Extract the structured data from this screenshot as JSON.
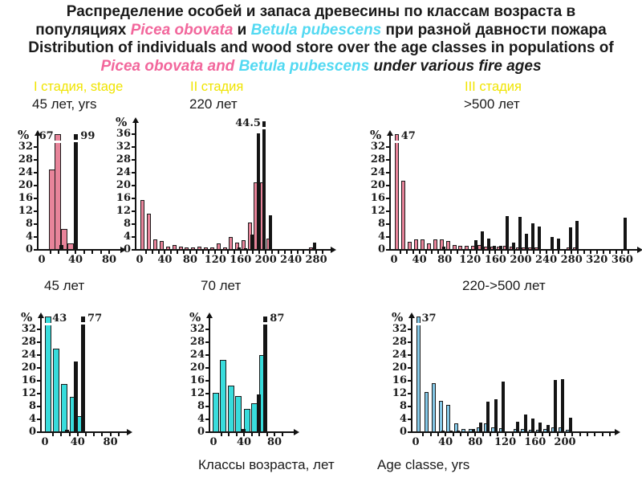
{
  "title": {
    "line1_ru": "Распределение особей и запаса древесины по классам возраста в",
    "line2_prefix": "популяциях ",
    "picea_ru": "Picea obovata",
    "line2_mid": " и ",
    "betula_ru": "Betula pubescens",
    "line2_suffix": " при разной давности пожара",
    "line3_en": "Distribution of individuals and wood store over the age classes in populations of",
    "line4_picea": "Picea obovata and ",
    "line4_betula": "Betula pubescens",
    "line4_suffix": " under various fire ages"
  },
  "stages": [
    {
      "stage_label": "I стадия, stage",
      "age_label": "45 лет, yrs"
    },
    {
      "stage_label": "II стадия",
      "age_label": "220 лет"
    },
    {
      "stage_label": "III стадия",
      "age_label": ">500 лет"
    }
  ],
  "bottom_labels": [
    "45 лет",
    "70 лет",
    "220->500 лет"
  ],
  "caption": {
    "ru": "Классы возраста, лет",
    "en": "Age classe, yrs"
  },
  "colors": {
    "picea_pink": "#f2679c",
    "betula_cyan": "#52d9f2",
    "stage_yellow": "#f0e400",
    "pink_bar": "#e8849a",
    "turquoise_bar": "#38dcdc",
    "blue_bar": "#85c9e8",
    "black_bar": "#141414"
  },
  "chart_data": [
    {
      "id": "c1",
      "type": "bar",
      "ylabel": "%",
      "ymax": 32,
      "ytick_step": 4,
      "xticks": [
        0,
        40,
        80
      ],
      "xlim": [
        0,
        90
      ],
      "series": [
        {
          "name": "individuals % (Picea obovata)",
          "color_key": "pink_bar",
          "points": [
            [
              12,
              25
            ],
            [
              19,
              67,
              1
            ],
            [
              27,
              6.5
            ],
            [
              34,
              2
            ]
          ]
        },
        {
          "name": "wood store %",
          "color_key": "black_bar",
          "points": [
            [
              23.5,
              1.5
            ],
            [
              40,
              99,
              1
            ]
          ]
        }
      ],
      "annotations": [
        {
          "text": "67",
          "x": 14,
          "align": "right"
        },
        {
          "text": "99",
          "x": 46,
          "align": "left"
        }
      ]
    },
    {
      "id": "c2",
      "type": "bar",
      "ylabel": "%",
      "ymax": 36,
      "ytick_step": 4,
      "xticks": [
        0,
        40,
        80,
        120,
        160,
        200,
        240,
        280
      ],
      "xlim": [
        0,
        300
      ],
      "series": [
        {
          "name": "individuals % (Picea obovata)",
          "color_key": "pink_bar",
          "points": [
            [
              5,
              15.5
            ],
            [
              15,
              11.3
            ],
            [
              25,
              3.3
            ],
            [
              35,
              2.7
            ],
            [
              45,
              0.9
            ],
            [
              55,
              1.5
            ],
            [
              65,
              0.9
            ],
            [
              75,
              0.2
            ],
            [
              85,
              0.8
            ],
            [
              95,
              0.9
            ],
            [
              105,
              0.8
            ],
            [
              115,
              0.3
            ],
            [
              125,
              1.9
            ],
            [
              135,
              0.8
            ],
            [
              145,
              3.9
            ],
            [
              155,
              2.3
            ],
            [
              165,
              2.9
            ],
            [
              175,
              8.5
            ],
            [
              184,
              21
            ],
            [
              194,
              21
            ],
            [
              204,
              3.4
            ],
            [
              272,
              0.8
            ]
          ]
        },
        {
          "name": "wood store %",
          "color_key": "black_bar",
          "points": [
            [
              158,
              0.7
            ],
            [
              168,
              0.6
            ],
            [
              178,
              4.7
            ],
            [
              188,
              36.2
            ],
            [
              197,
              44.5,
              1
            ],
            [
              207,
              10.7
            ],
            [
              277,
              2.3
            ]
          ]
        }
      ],
      "annotations": [
        {
          "text": "44.5",
          "x": 192,
          "align": "right"
        }
      ]
    },
    {
      "id": "c3",
      "type": "bar",
      "ylabel": "%",
      "ymax": 32,
      "ytick_step": 4,
      "xticks": [
        0,
        40,
        80,
        120,
        160,
        200,
        240,
        280,
        320,
        360
      ],
      "xlim": [
        0,
        380
      ],
      "series": [
        {
          "name": "individuals % (Picea obovata)",
          "color_key": "pink_bar",
          "points": [
            [
              5,
              47,
              1
            ],
            [
              15,
              21.5
            ],
            [
              25,
              2.6
            ],
            [
              35,
              3.3
            ],
            [
              45,
              3.3
            ],
            [
              55,
              2
            ],
            [
              65,
              3.2
            ],
            [
              75,
              3.2
            ],
            [
              85,
              2.8
            ],
            [
              95,
              1.5
            ],
            [
              105,
              1.2
            ],
            [
              115,
              1.2
            ],
            [
              125,
              1.2
            ],
            [
              135,
              1.4
            ],
            [
              145,
              1.1
            ],
            [
              155,
              1
            ],
            [
              165,
              1.1
            ],
            [
              175,
              1.3
            ],
            [
              185,
              1
            ],
            [
              195,
              0.8
            ],
            [
              205,
              0.6
            ],
            [
              215,
              0.7
            ],
            [
              225,
              0.8
            ],
            [
              275,
              0.6
            ],
            [
              285,
              0.7
            ]
          ]
        },
        {
          "name": "wood store %",
          "color_key": "black_bar",
          "points": [
            [
              79,
              1
            ],
            [
              129,
              2.9
            ],
            [
              139,
              5.8
            ],
            [
              149,
              3.5
            ],
            [
              158,
              1.2
            ],
            [
              168,
              1.3
            ],
            [
              179,
              10.5
            ],
            [
              189,
              2.3
            ],
            [
              199,
              10.2
            ],
            [
              209,
              4.9
            ],
            [
              219,
              8.2
            ],
            [
              229,
              7.2
            ],
            [
              249,
              3.9
            ],
            [
              259,
              3.6
            ],
            [
              279,
              7.1
            ],
            [
              289,
              9
            ],
            [
              365,
              10
            ]
          ]
        }
      ],
      "annotations": [
        {
          "text": "47",
          "x": 11,
          "align": "left"
        }
      ]
    },
    {
      "id": "c4",
      "type": "bar",
      "ylabel": "%",
      "ymax": 32,
      "ytick_step": 4,
      "xticks": [
        0,
        40,
        80
      ],
      "xlim": [
        0,
        95
      ],
      "series": [
        {
          "name": "individuals % (Betula pubescens)",
          "color_key": "turquoise_bar",
          "points": [
            [
              4,
              43,
              1
            ],
            [
              14,
              26
            ],
            [
              24,
              15
            ],
            [
              34,
              11
            ],
            [
              43,
              5
            ]
          ]
        },
        {
          "name": "wood store %",
          "color_key": "black_bar",
          "points": [
            [
              27,
              0.8
            ],
            [
              38,
              22
            ],
            [
              47,
              77,
              1
            ]
          ]
        }
      ],
      "annotations": [
        {
          "text": "43",
          "x": 9,
          "align": "left"
        },
        {
          "text": "77",
          "x": 52,
          "align": "left"
        }
      ]
    },
    {
      "id": "c5",
      "type": "bar",
      "ylabel": "%",
      "ymax": 32,
      "ytick_step": 4,
      "xticks": [
        0,
        40,
        80
      ],
      "xlim": [
        0,
        95
      ],
      "series": [
        {
          "name": "individuals % (Betula pubescens)",
          "color_key": "turquoise_bar",
          "points": [
            [
              3,
              12.2
            ],
            [
              13,
              22.5
            ],
            [
              23,
              14.4
            ],
            [
              33,
              11.2
            ],
            [
              44,
              7.2
            ],
            [
              54,
              9
            ],
            [
              64,
              24
            ]
          ]
        },
        {
          "name": "wood store %",
          "color_key": "black_bar",
          "points": [
            [
              39,
              1
            ],
            [
              59,
              11.8
            ],
            [
              68,
              87,
              1
            ]
          ]
        }
      ],
      "annotations": [
        {
          "text": "87",
          "x": 74,
          "align": "left"
        }
      ]
    },
    {
      "id": "c6",
      "type": "bar",
      "ylabel": "%",
      "ymax": 32,
      "ytick_step": 4,
      "xticks": [
        0,
        40,
        80,
        120,
        160,
        200
      ],
      "xlim": [
        0,
        255
      ],
      "series": [
        {
          "name": "individuals % (Betula pubescens)",
          "color_key": "blue_bar",
          "points": [
            [
              4,
              37,
              1
            ],
            [
              14,
              12.5
            ],
            [
              24,
              15.3
            ],
            [
              34,
              9.7
            ],
            [
              44,
              8.4
            ],
            [
              54,
              2.8
            ],
            [
              64,
              1
            ],
            [
              74,
              1
            ],
            [
              84,
              1.5
            ],
            [
              94,
              2.7
            ],
            [
              104,
              1.5
            ],
            [
              114,
              1.3
            ],
            [
              134,
              1
            ],
            [
              144,
              1
            ],
            [
              154,
              0.8
            ],
            [
              164,
              0.8
            ],
            [
              174,
              1
            ],
            [
              184,
              1.6
            ],
            [
              194,
              1.6
            ],
            [
              204,
              0.7
            ]
          ]
        },
        {
          "name": "wood store %",
          "color_key": "black_bar",
          "points": [
            [
              37,
              0.4
            ],
            [
              47,
              0.6
            ],
            [
              57,
              0.5
            ],
            [
              77,
              1
            ],
            [
              87,
              2.9
            ],
            [
              97,
              9.5
            ],
            [
              107,
              10.3
            ],
            [
              117,
              15.8
            ],
            [
              137,
              3.2
            ],
            [
              147,
              5.5
            ],
            [
              157,
              4.2
            ],
            [
              167,
              3
            ],
            [
              177,
              2.2
            ],
            [
              187,
              16.2
            ],
            [
              197,
              16.6
            ],
            [
              207,
              4.5
            ]
          ]
        }
      ],
      "annotations": [
        {
          "text": "37",
          "x": 8,
          "align": "left"
        }
      ]
    }
  ]
}
